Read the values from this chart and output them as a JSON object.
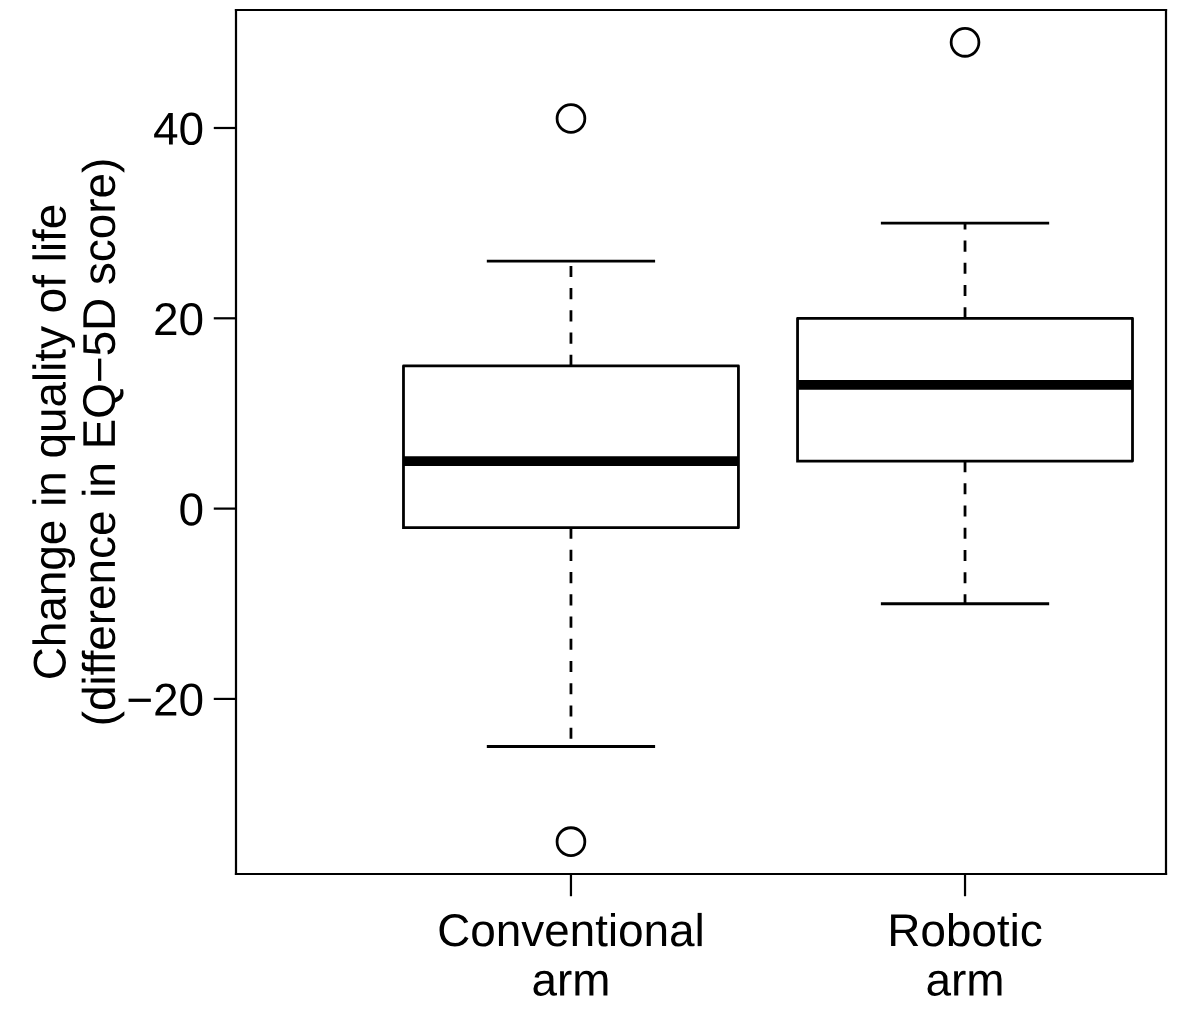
{
  "chart_data": {
    "type": "box",
    "ylabel": "Change in quality of life\n(difference in EQ−5D score)",
    "categories": [
      "Conventional\narm",
      "Robotic\narm"
    ],
    "boxes": [
      {
        "low": -25,
        "q1": -2,
        "median": 5,
        "q3": 15,
        "high": 26,
        "outliers": [
          41,
          -35
        ]
      },
      {
        "low": -10,
        "q1": 5,
        "median": 13,
        "q3": 20,
        "high": 30,
        "outliers": [
          49
        ]
      }
    ],
    "ylim": [
      -38.4,
      52.4
    ],
    "yticks": [
      -20,
      0,
      20,
      40
    ],
    "grid": false
  }
}
